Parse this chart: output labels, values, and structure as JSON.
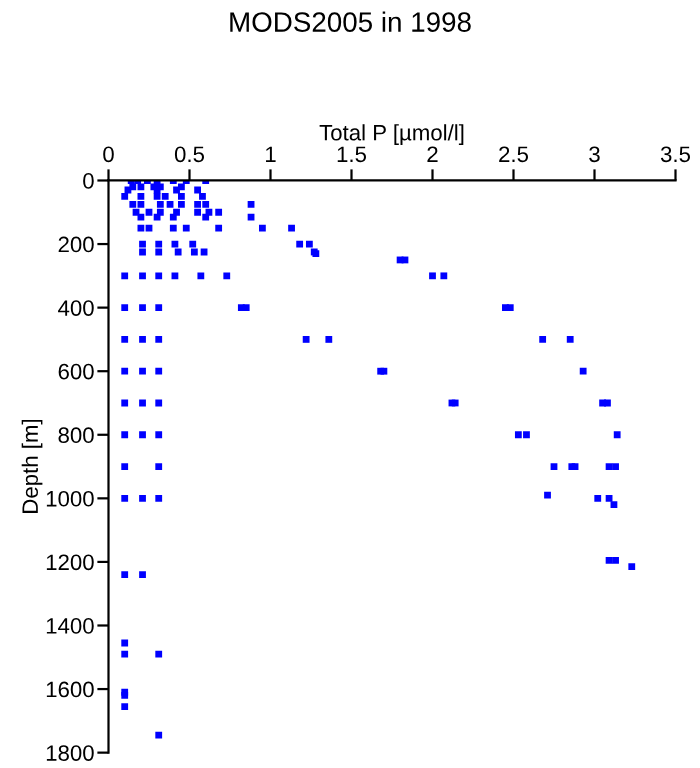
{
  "chart_data": {
    "type": "scatter",
    "title": "MODS2005 in 1998",
    "xlabel": "Total P [µmol/l]",
    "ylabel": "Depth [m]",
    "marker": "square",
    "xlim": [
      0,
      3.5
    ],
    "xticks": [
      0,
      0.5,
      1,
      1.5,
      2,
      2.5,
      3,
      3.5
    ],
    "ylim": [
      1800,
      0
    ],
    "yticks": [
      0,
      200,
      400,
      600,
      800,
      1000,
      1200,
      1400,
      1600,
      1800
    ],
    "series": [
      {
        "color": "#0000ff",
        "x": [
          0.14,
          0.18,
          0.24,
          0.3,
          0.4,
          0.48,
          0.6,
          0.15,
          0.2,
          0.28,
          0.32,
          0.45,
          0.12,
          0.3,
          0.42,
          0.55,
          0.1,
          0.2,
          0.3,
          0.35,
          0.45,
          0.58,
          0.15,
          0.2,
          0.32,
          0.38,
          0.45,
          0.55,
          0.6,
          0.88,
          0.17,
          0.25,
          0.32,
          0.42,
          0.55,
          0.62,
          0.68,
          0.2,
          0.3,
          0.4,
          0.6,
          0.88,
          0.2,
          0.25,
          0.4,
          0.48,
          0.68,
          0.95,
          1.13,
          0.21,
          0.31,
          0.41,
          0.52,
          1.18,
          1.24,
          0.21,
          0.31,
          0.43,
          0.53,
          0.59,
          1.27,
          1.28,
          1.8,
          1.83,
          2.0,
          2.07,
          0.1,
          0.21,
          0.31,
          0.41,
          0.57,
          0.73,
          0.1,
          0.21,
          0.31,
          0.82,
          0.85,
          2.45,
          2.48,
          0.1,
          0.21,
          0.31,
          1.22,
          1.36,
          2.68,
          2.85,
          0.1,
          0.21,
          0.31,
          1.68,
          1.7,
          2.93,
          0.1,
          0.21,
          0.31,
          2.12,
          2.14,
          3.05,
          3.08,
          0.1,
          0.21,
          0.31,
          2.53,
          2.58,
          3.14,
          0.1,
          0.31,
          2.75,
          2.86,
          2.88,
          3.09,
          3.13,
          0.1,
          0.21,
          0.31,
          2.71,
          3.02,
          3.09,
          3.12,
          3.09,
          3.13,
          3.23,
          0.1,
          0.21,
          0.1,
          0.1,
          0.31,
          0.1,
          0.1,
          0.1,
          0.31
        ],
        "values": [
          0,
          0,
          0,
          0,
          0,
          0,
          0,
          20,
          20,
          20,
          20,
          20,
          30,
          30,
          30,
          30,
          50,
          50,
          50,
          50,
          50,
          50,
          75,
          75,
          75,
          75,
          75,
          75,
          75,
          75,
          100,
          100,
          100,
          100,
          100,
          100,
          100,
          115,
          115,
          115,
          115,
          115,
          150,
          150,
          150,
          150,
          150,
          150,
          150,
          200,
          200,
          200,
          200,
          200,
          200,
          225,
          225,
          225,
          225,
          225,
          225,
          230,
          250,
          250,
          300,
          300,
          300,
          300,
          300,
          300,
          300,
          300,
          400,
          400,
          400,
          400,
          400,
          400,
          400,
          500,
          500,
          500,
          500,
          500,
          500,
          500,
          600,
          600,
          600,
          600,
          600,
          600,
          700,
          700,
          700,
          700,
          700,
          700,
          700,
          800,
          800,
          800,
          800,
          800,
          800,
          900,
          900,
          900,
          900,
          900,
          900,
          900,
          1000,
          1000,
          1000,
          990,
          1000,
          1000,
          1020,
          1195,
          1195,
          1215,
          1240,
          1240,
          1455,
          1490,
          1490,
          1610,
          1620,
          1655,
          1745
        ]
      }
    ]
  }
}
